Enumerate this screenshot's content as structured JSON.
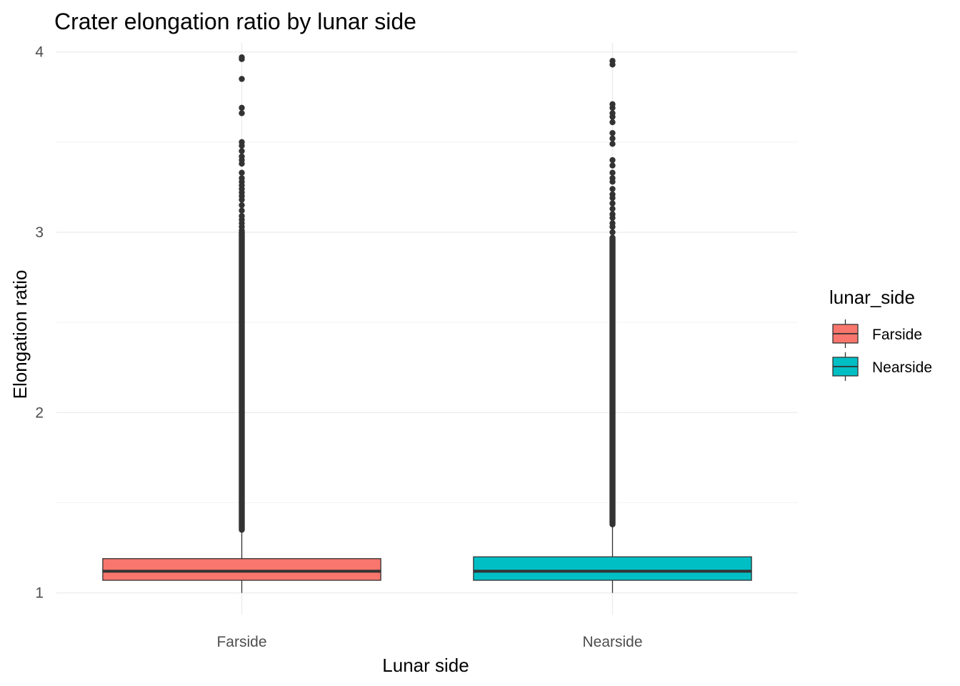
{
  "chart_data": {
    "type": "boxplot",
    "title": "Crater elongation ratio by lunar side",
    "xlabel": "Lunar side",
    "ylabel": "Elongation ratio",
    "ylim": [
      0.88,
      4.05
    ],
    "yticks": [
      1,
      2,
      3,
      4
    ],
    "ytick_labels": [
      "1",
      "2",
      "3",
      "4"
    ],
    "grid": true,
    "categories": [
      "Farside",
      "Nearside"
    ],
    "legend": {
      "title": "lunar_side",
      "position": "right",
      "entries": [
        "Farside",
        "Nearside"
      ]
    },
    "boxes": [
      {
        "category": "Farside",
        "color": "#F8766D",
        "whisker_low": 1.0,
        "q1": 1.07,
        "median": 1.12,
        "q3": 1.19,
        "whisker_high": 1.35,
        "outlier_range": [
          1.35,
          3.0
        ],
        "outliers": [
          3.97,
          3.96,
          3.85,
          3.69,
          3.66,
          3.5,
          3.48,
          3.45,
          3.42,
          3.4,
          3.38,
          3.33,
          3.3,
          3.28,
          3.26,
          3.24,
          3.22,
          3.2,
          3.18,
          3.15,
          3.12,
          3.09,
          3.07,
          3.05,
          3.03,
          3.01
        ]
      },
      {
        "category": "Nearside",
        "color": "#00BFC4",
        "whisker_low": 1.0,
        "q1": 1.07,
        "median": 1.12,
        "q3": 1.2,
        "whisker_high": 1.38,
        "outlier_range": [
          1.38,
          2.97
        ],
        "outliers": [
          3.95,
          3.93,
          3.71,
          3.69,
          3.66,
          3.64,
          3.61,
          3.55,
          3.52,
          3.49,
          3.4,
          3.37,
          3.33,
          3.3,
          3.28,
          3.24,
          3.21,
          3.19,
          3.16,
          3.13,
          3.1,
          3.08,
          3.05,
          3.03,
          3.0
        ]
      }
    ]
  }
}
